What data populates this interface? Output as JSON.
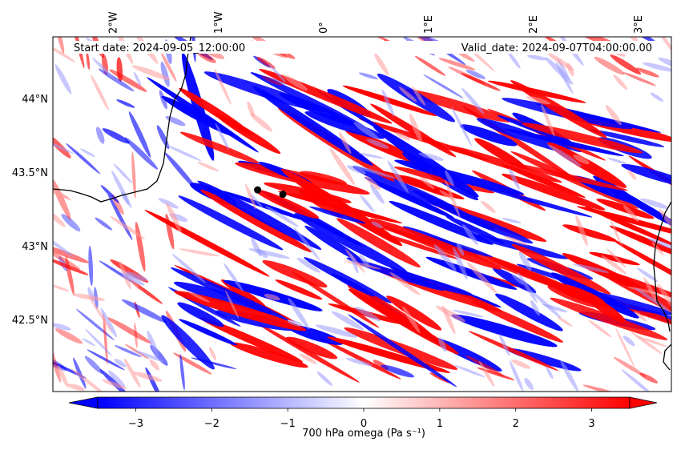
{
  "header": {
    "start_label": "Start date: 2024-09-05_12:00:00",
    "valid_label": "Valid_date: 2024-09-07T04:00:00.00"
  },
  "map": {
    "lon_range": [
      -2.57,
      3.32
    ],
    "lat_range": [
      42.01,
      44.42
    ],
    "lon_ticks": [
      {
        "value": -2,
        "label": "2°W"
      },
      {
        "value": -1,
        "label": "1°W"
      },
      {
        "value": 0,
        "label": "0°"
      },
      {
        "value": 1,
        "label": "1°E"
      },
      {
        "value": 2,
        "label": "2°E"
      },
      {
        "value": 3,
        "label": "3°E"
      }
    ],
    "lat_ticks": [
      {
        "value": 44.0,
        "label": "44°N"
      },
      {
        "value": 43.5,
        "label": "43.5°N"
      },
      {
        "value": 43.0,
        "label": "43°N"
      },
      {
        "value": 42.5,
        "label": "42.5°N"
      }
    ],
    "markers": [
      {
        "lon": -0.62,
        "lat": 43.38
      },
      {
        "lon": -0.38,
        "lat": 43.35
      }
    ],
    "field_colors": {
      "negative": "#0000ff",
      "neutral": "#ffffff",
      "positive": "#ff0000"
    }
  },
  "colorbar": {
    "label": "700 hPa omega (Pa s⁻¹)",
    "range": [
      -3.5,
      3.5
    ],
    "ticks": [
      {
        "value": -3,
        "label": "−3"
      },
      {
        "value": -2,
        "label": "−2"
      },
      {
        "value": -1,
        "label": "−1"
      },
      {
        "value": 0,
        "label": "0"
      },
      {
        "value": 1,
        "label": "1"
      },
      {
        "value": 2,
        "label": "2"
      },
      {
        "value": 3,
        "label": "3"
      }
    ]
  }
}
